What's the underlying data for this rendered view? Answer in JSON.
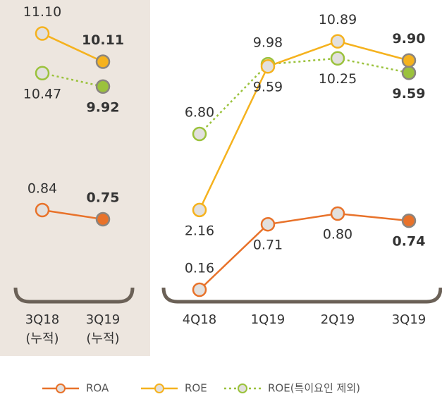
{
  "chart_data": [
    {
      "type": "line",
      "categories": [
        "3Q18\n(누적)",
        "3Q19\n(누적)"
      ],
      "series": [
        {
          "name": "ROA",
          "color": "#e8722a",
          "style": "solid",
          "values": [
            0.84,
            0.75
          ],
          "value_labels": [
            "0.84",
            "0.75"
          ]
        },
        {
          "name": "ROE",
          "color": "#f5b21e",
          "style": "solid",
          "values": [
            11.1,
            10.11
          ],
          "value_labels": [
            "11.10",
            "10.11"
          ]
        },
        {
          "name": "ROE(특이요인 제외)",
          "color": "#9bc23c",
          "style": "dotted",
          "values": [
            10.47,
            9.92
          ],
          "value_labels": [
            "10.47",
            "9.92"
          ]
        }
      ]
    },
    {
      "type": "line",
      "categories": [
        "4Q18",
        "1Q19",
        "2Q19",
        "3Q19"
      ],
      "series": [
        {
          "name": "ROA",
          "color": "#e8722a",
          "style": "solid",
          "values": [
            0.16,
            0.71,
            0.8,
            0.74
          ],
          "value_labels": [
            "0.16",
            "0.71",
            "0.80",
            "0.74"
          ]
        },
        {
          "name": "ROE",
          "color": "#f5b21e",
          "style": "solid",
          "values": [
            2.16,
            9.59,
            10.89,
            9.9
          ],
          "value_labels": [
            "2.16",
            "9.59",
            "10.89",
            "9.90"
          ]
        },
        {
          "name": "ROE(특이요인 제외)",
          "color": "#9bc23c",
          "style": "dotted",
          "values": [
            6.8,
            9.98,
            10.25,
            9.59
          ],
          "value_labels": [
            "6.80",
            "9.98",
            "10.25",
            "9.59"
          ]
        }
      ]
    }
  ]
}
